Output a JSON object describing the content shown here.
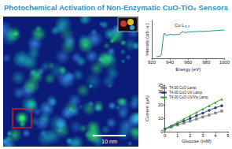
{
  "title": "Photochemical Activation of Non-Enzymatic CuO-TiO₂ Sensors",
  "image": {
    "scale_bar": "10 nm"
  },
  "chart_data": [
    {
      "type": "line",
      "annotation": "Cu L₃,₂",
      "x_label": "Energy (eV)",
      "y_label": "Intensity (arb. u.)",
      "x": [
        925,
        928,
        930,
        931,
        932,
        933,
        934,
        936,
        938,
        940,
        945,
        950,
        952,
        954,
        956,
        960,
        965,
        970,
        980,
        990,
        1000
      ],
      "values": [
        0.05,
        0.06,
        0.08,
        0.2,
        0.5,
        0.75,
        0.8,
        0.72,
        0.74,
        0.76,
        0.75,
        0.76,
        0.8,
        0.85,
        0.82,
        0.83,
        0.84,
        0.85,
        0.86,
        0.88,
        0.9
      ],
      "color": "#2a8c8c",
      "xlim": [
        920,
        1000
      ],
      "xticks": [
        920,
        940,
        960,
        980,
        1000
      ],
      "ylim": [
        0,
        1.2
      ],
      "tick_labels": "x",
      "grid": false
    },
    {
      "type": "line",
      "x_label": "Glucose (mM)",
      "y_label": "Current (µA)",
      "x": [
        0,
        0.5,
        1,
        1.5,
        2,
        2.5,
        3,
        3.5,
        4,
        4.5
      ],
      "series": [
        {
          "name": "T4.00 CuO Lamp",
          "color": "#8a8a8a",
          "marker": "square",
          "line_style": "solid",
          "values": [
            2,
            3.5,
            5,
            6.5,
            8,
            9.5,
            11,
            12.5,
            14,
            15.5
          ]
        },
        {
          "name": "T4.00 CuO UV Lamp",
          "color": "#2f3f8f",
          "marker": "circle",
          "line_style": "solid",
          "values": [
            2,
            4,
            6,
            8,
            10,
            12,
            14,
            16,
            18,
            19.5
          ]
        },
        {
          "name": "T4.00 CuO UV/Vis Lamp",
          "color": "#3aa63a",
          "marker": "triangle",
          "line_style": "solid",
          "values": [
            2,
            4.5,
            7,
            9.5,
            12,
            14.5,
            17,
            19.5,
            22,
            24.5
          ]
        }
      ],
      "xlim": [
        0,
        5
      ],
      "xticks": [
        0,
        1,
        2,
        3,
        4,
        5
      ],
      "ylim": [
        0,
        35
      ],
      "yticks": [
        0,
        10,
        20,
        30
      ],
      "legend": "upper left",
      "grid": false
    }
  ]
}
